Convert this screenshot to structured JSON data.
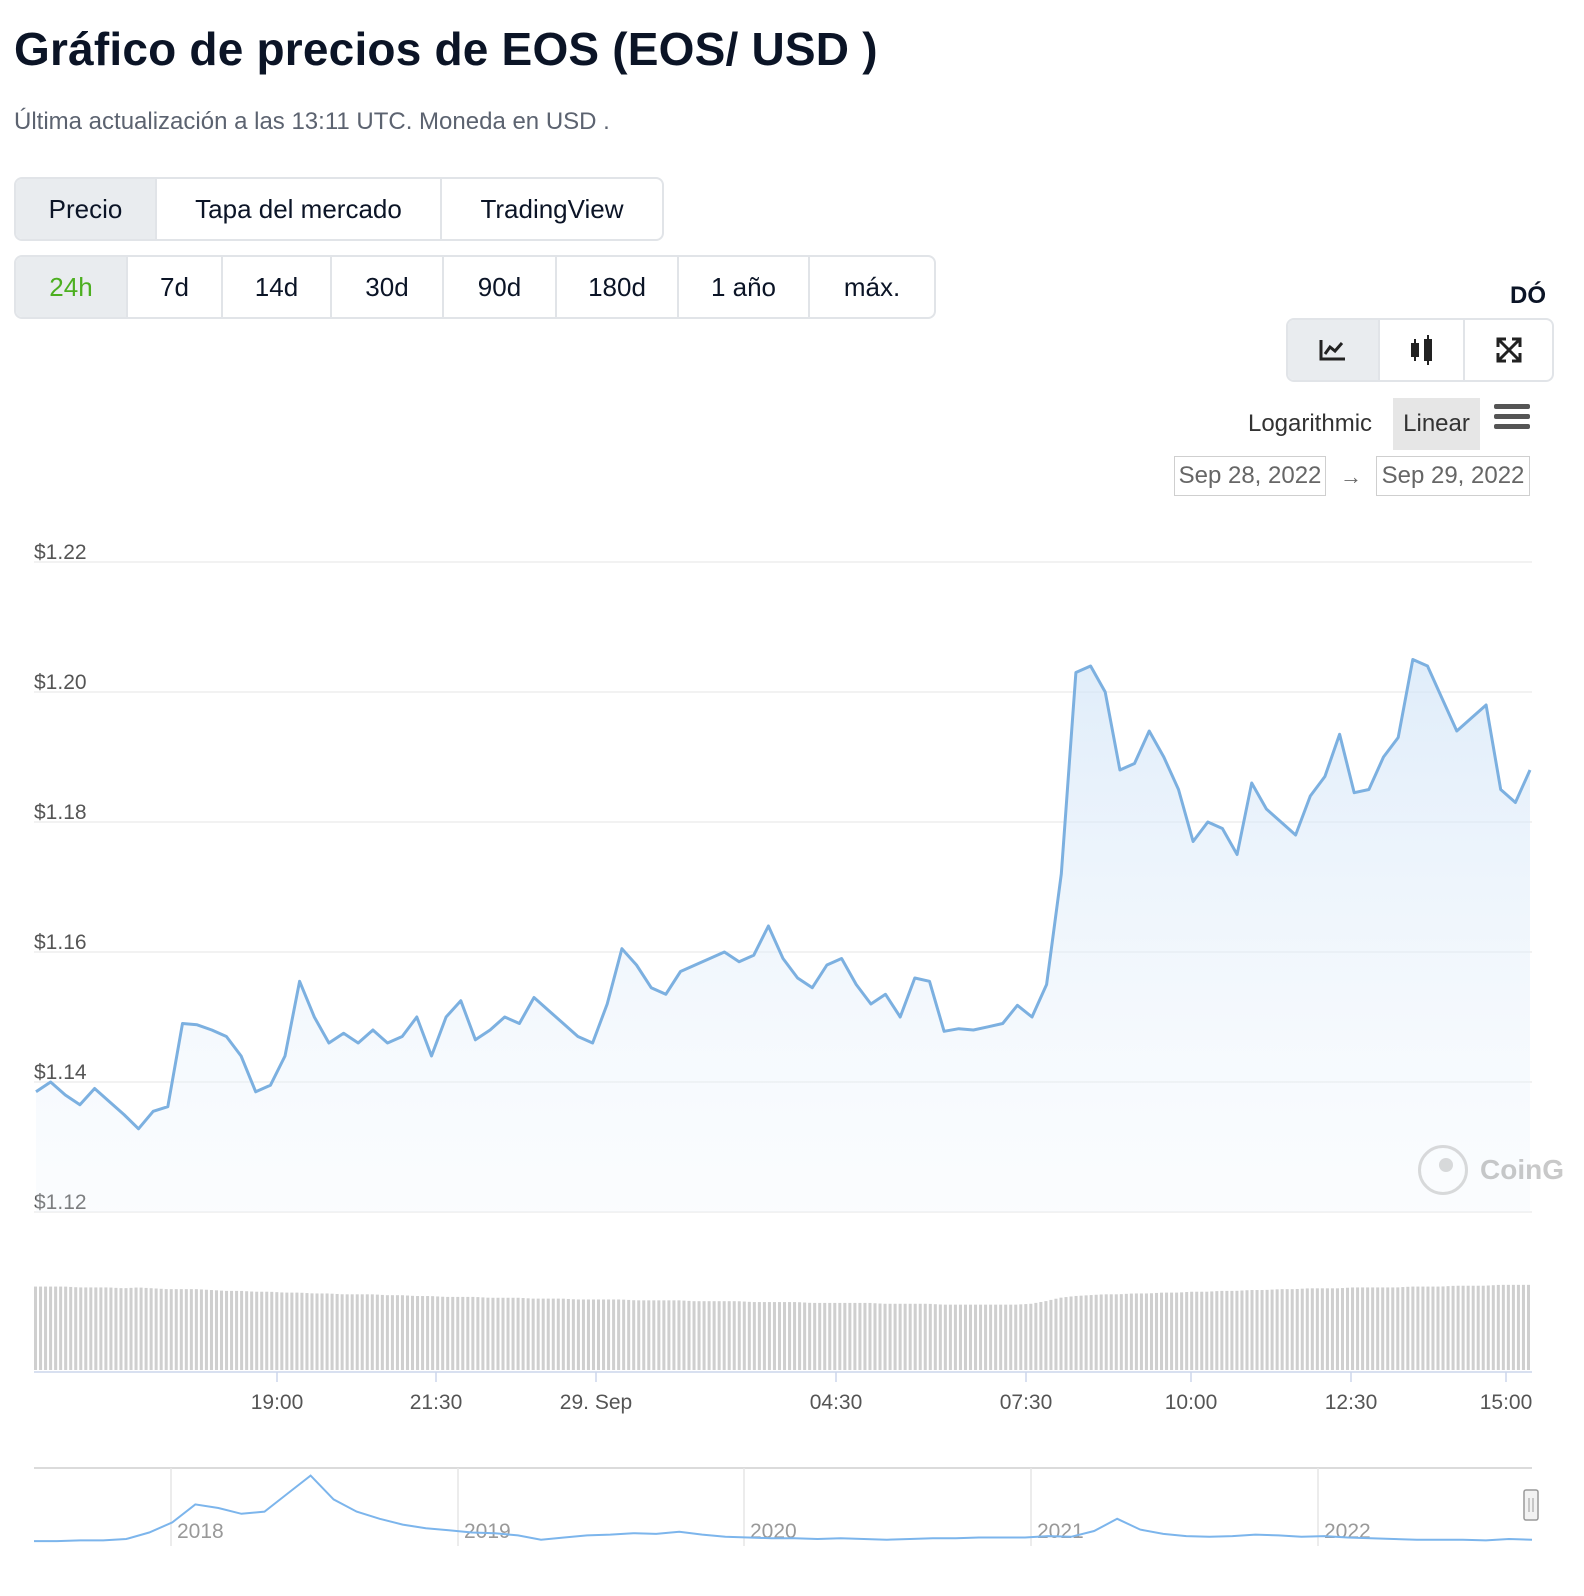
{
  "header": {
    "title": "Gráfico de precios de EOS (EOS/ USD )",
    "subtitle": "Última actualización a las 13:11 UTC. Moneda en USD ."
  },
  "chart_tabs": [
    "Precio",
    "Tapa del mercado",
    "TradingView"
  ],
  "range_tabs": [
    "24h",
    "7d",
    "14d",
    "30d",
    "90d",
    "180d",
    "1 año",
    "máx."
  ],
  "cut_label": "DÓ",
  "chart_type_icons": [
    "line-chart-icon",
    "candlestick-icon",
    "fullscreen-icon"
  ],
  "scale": {
    "log_label": "Logarithmic",
    "linear_label": "Linear",
    "selected": "Linear"
  },
  "date_range": {
    "from": "Sep 28, 2022",
    "arrow": "→",
    "to": "Sep 29, 2022"
  },
  "watermark": "CoinG",
  "colors": {
    "line": "#7cb0e0",
    "accent_green": "#4caf20",
    "volume": "#cfcfcf",
    "navigator": "#7cb5ec"
  },
  "chart_data": {
    "type": "area",
    "y_ticks": [
      "$1.22",
      "$1.20",
      "$1.18",
      "$1.16",
      "$1.14",
      "$1.12"
    ],
    "ylim": [
      1.12,
      1.22
    ],
    "x_ticks": [
      "19:00",
      "21:30",
      "29. Sep",
      "04:30",
      "07:30",
      "10:00",
      "12:30",
      "15:00"
    ],
    "price_series": [
      1.1385,
      1.14,
      1.138,
      1.1365,
      1.139,
      1.137,
      1.135,
      1.1328,
      1.1355,
      1.1362,
      1.149,
      1.1488,
      1.148,
      1.147,
      1.144,
      1.1385,
      1.1395,
      1.144,
      1.1555,
      1.15,
      1.146,
      1.1475,
      1.146,
      1.148,
      1.146,
      1.147,
      1.15,
      1.144,
      1.15,
      1.1525,
      1.1465,
      1.148,
      1.15,
      1.149,
      1.153,
      1.151,
      1.149,
      1.147,
      1.146,
      1.152,
      1.1605,
      1.158,
      1.1545,
      1.1535,
      1.157,
      1.158,
      1.159,
      1.16,
      1.1585,
      1.1595,
      1.164,
      1.159,
      1.156,
      1.1545,
      1.158,
      1.159,
      1.155,
      1.152,
      1.1535,
      1.15,
      1.156,
      1.1555,
      1.1478,
      1.1482,
      1.148,
      1.1485,
      1.149,
      1.1518,
      1.15,
      1.155,
      1.172,
      1.203,
      1.204,
      1.2,
      1.188,
      1.189,
      1.194,
      1.19,
      1.185,
      1.177,
      1.18,
      1.179,
      1.175,
      1.186,
      1.182,
      1.18,
      1.178,
      1.184,
      1.187,
      1.1935,
      1.1845,
      1.185,
      1.19,
      1.193,
      1.205,
      1.204,
      1.199,
      1.194,
      1.196,
      1.198,
      1.185,
      1.183,
      1.188
    ],
    "volume_series": [
      0.97,
      0.97,
      0.97,
      0.96,
      0.96,
      0.96,
      0.95,
      0.96,
      0.95,
      0.94,
      0.94,
      0.94,
      0.93,
      0.92,
      0.92,
      0.91,
      0.91,
      0.9,
      0.9,
      0.89,
      0.89,
      0.88,
      0.88,
      0.88,
      0.87,
      0.87,
      0.86,
      0.86,
      0.85,
      0.85,
      0.85,
      0.84,
      0.84,
      0.84,
      0.83,
      0.83,
      0.83,
      0.82,
      0.82,
      0.82,
      0.82,
      0.81,
      0.81,
      0.81,
      0.81,
      0.8,
      0.8,
      0.8,
      0.8,
      0.79,
      0.79,
      0.79,
      0.79,
      0.78,
      0.78,
      0.78,
      0.78,
      0.78,
      0.77,
      0.77,
      0.77,
      0.77,
      0.76,
      0.76,
      0.76,
      0.76,
      0.76,
      0.76,
      0.77,
      0.8,
      0.84,
      0.86,
      0.87,
      0.88,
      0.88,
      0.89,
      0.89,
      0.9,
      0.9,
      0.91,
      0.91,
      0.92,
      0.92,
      0.93,
      0.93,
      0.94,
      0.94,
      0.95,
      0.95,
      0.95,
      0.96,
      0.96,
      0.96,
      0.96,
      0.97,
      0.97,
      0.97,
      0.98,
      0.98,
      0.98,
      0.99,
      0.99,
      0.99
    ],
    "navigator": {
      "year_labels": [
        "2018",
        "2019",
        "2020",
        "2021",
        "2022"
      ],
      "series": [
        0.04,
        0.04,
        0.05,
        0.05,
        0.07,
        0.16,
        0.3,
        0.55,
        0.5,
        0.42,
        0.45,
        0.7,
        0.95,
        0.62,
        0.45,
        0.35,
        0.27,
        0.22,
        0.19,
        0.16,
        0.15,
        0.12,
        0.06,
        0.09,
        0.12,
        0.13,
        0.15,
        0.14,
        0.17,
        0.13,
        0.1,
        0.09,
        0.08,
        0.08,
        0.07,
        0.08,
        0.07,
        0.06,
        0.07,
        0.08,
        0.08,
        0.09,
        0.09,
        0.09,
        0.11,
        0.1,
        0.18,
        0.35,
        0.2,
        0.14,
        0.11,
        0.1,
        0.11,
        0.13,
        0.12,
        0.1,
        0.11,
        0.09,
        0.08,
        0.07,
        0.06,
        0.06,
        0.06,
        0.05,
        0.07,
        0.06
      ]
    }
  }
}
